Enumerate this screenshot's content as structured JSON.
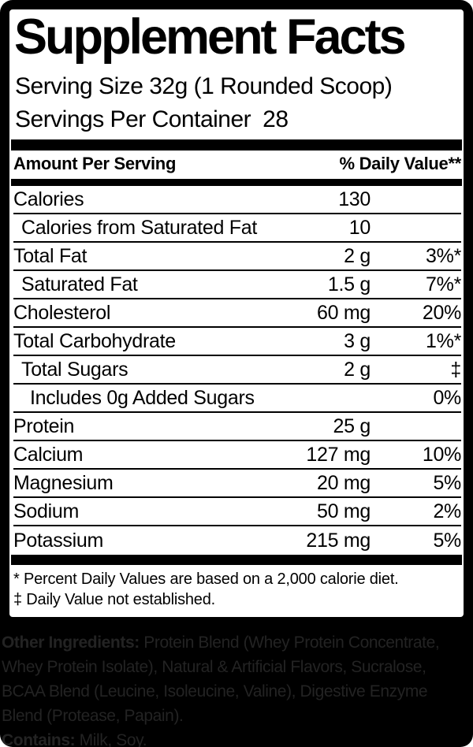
{
  "nutrition_label": {
    "title": "Supplement Facts",
    "serving_size": "Serving Size 32g (1 Rounded Scoop)",
    "servings_per_container_label": "Servings Per Container",
    "servings_per_container_value": "28",
    "column_headers": {
      "amount": "Amount Per Serving",
      "daily_value": "% Daily Value**"
    },
    "rows": [
      {
        "label": "Calories",
        "indent": 0,
        "amount": "130",
        "daily_value": ""
      },
      {
        "label": "Calories from Saturated Fat",
        "indent": 1,
        "amount": "10",
        "daily_value": ""
      },
      {
        "label": "Total Fat",
        "indent": 0,
        "amount": "2 g",
        "daily_value": "3%*"
      },
      {
        "label": "Saturated Fat",
        "indent": 1,
        "amount": "1.5 g",
        "daily_value": "7%*"
      },
      {
        "label": "Cholesterol",
        "indent": 0,
        "amount": "60 mg",
        "daily_value": "20%"
      },
      {
        "label": "Total Carbohydrate",
        "indent": 0,
        "amount": "3 g",
        "daily_value": "1%*"
      },
      {
        "label": "Total Sugars",
        "indent": 1,
        "amount": "2 g",
        "daily_value": "‡"
      },
      {
        "label": "Includes 0g Added Sugars",
        "indent": 2,
        "amount": "",
        "daily_value": "0%"
      },
      {
        "label": "Protein",
        "indent": 0,
        "amount": "25 g",
        "daily_value": ""
      },
      {
        "label": "Calcium",
        "indent": 0,
        "amount": "127 mg",
        "daily_value": "10%"
      },
      {
        "label": "Magnesium",
        "indent": 0,
        "amount": "20 mg",
        "daily_value": "5%"
      },
      {
        "label": "Sodium",
        "indent": 0,
        "amount": "50 mg",
        "daily_value": "2%"
      },
      {
        "label": "Potassium",
        "indent": 0,
        "amount": "215 mg",
        "daily_value": "5%"
      }
    ],
    "footnotes": [
      "* Percent Daily Values are based on a 2,000 calorie diet.",
      "‡ Daily Value not established."
    ]
  },
  "ingredients_section": {
    "lines": [
      {
        "bold": "Other Ingredients:",
        "text": " Protein Blend (Whey Protein Concentrate,"
      },
      {
        "bold": "",
        "text": "Whey Protein Isolate), Natural & Artificial Flavors, Sucralose,"
      },
      {
        "bold": "",
        "text": "BCAA Blend (Leucine, Isoleucine, Valine), Digestive Enzyme"
      },
      {
        "bold": "",
        "text": "Blend (Protease, Papain)."
      },
      {
        "bold": "Contains:",
        "text": " Milk, Soy."
      }
    ]
  },
  "colors": {
    "frame": "#000000",
    "label_background": "#ffffff",
    "label_text": "#000000",
    "ingredients_text": "#232323"
  }
}
